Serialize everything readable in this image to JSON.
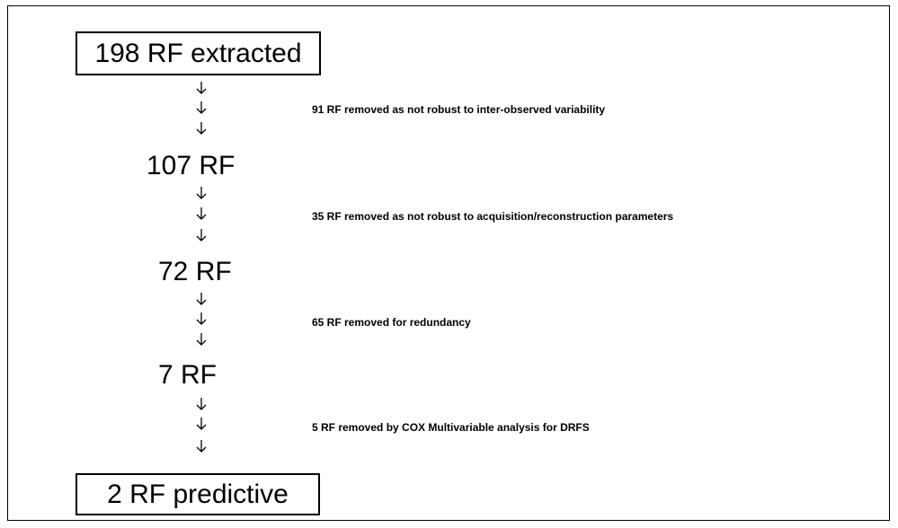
{
  "nodes": [
    {
      "label": "198 RF extracted"
    },
    {
      "label": "107 RF"
    },
    {
      "label": "72 RF"
    },
    {
      "label": "7 RF"
    },
    {
      "label": "2 RF predictive"
    }
  ],
  "removals": [
    {
      "label": "91 RF removed as not robust to inter-observed variability"
    },
    {
      "label": "35 RF removed as not robust to acquisition/reconstruction parameters"
    },
    {
      "label": "65 RF removed for redundancy"
    },
    {
      "label": "5 RF removed by COX Multivariable analysis for DRFS"
    }
  ]
}
